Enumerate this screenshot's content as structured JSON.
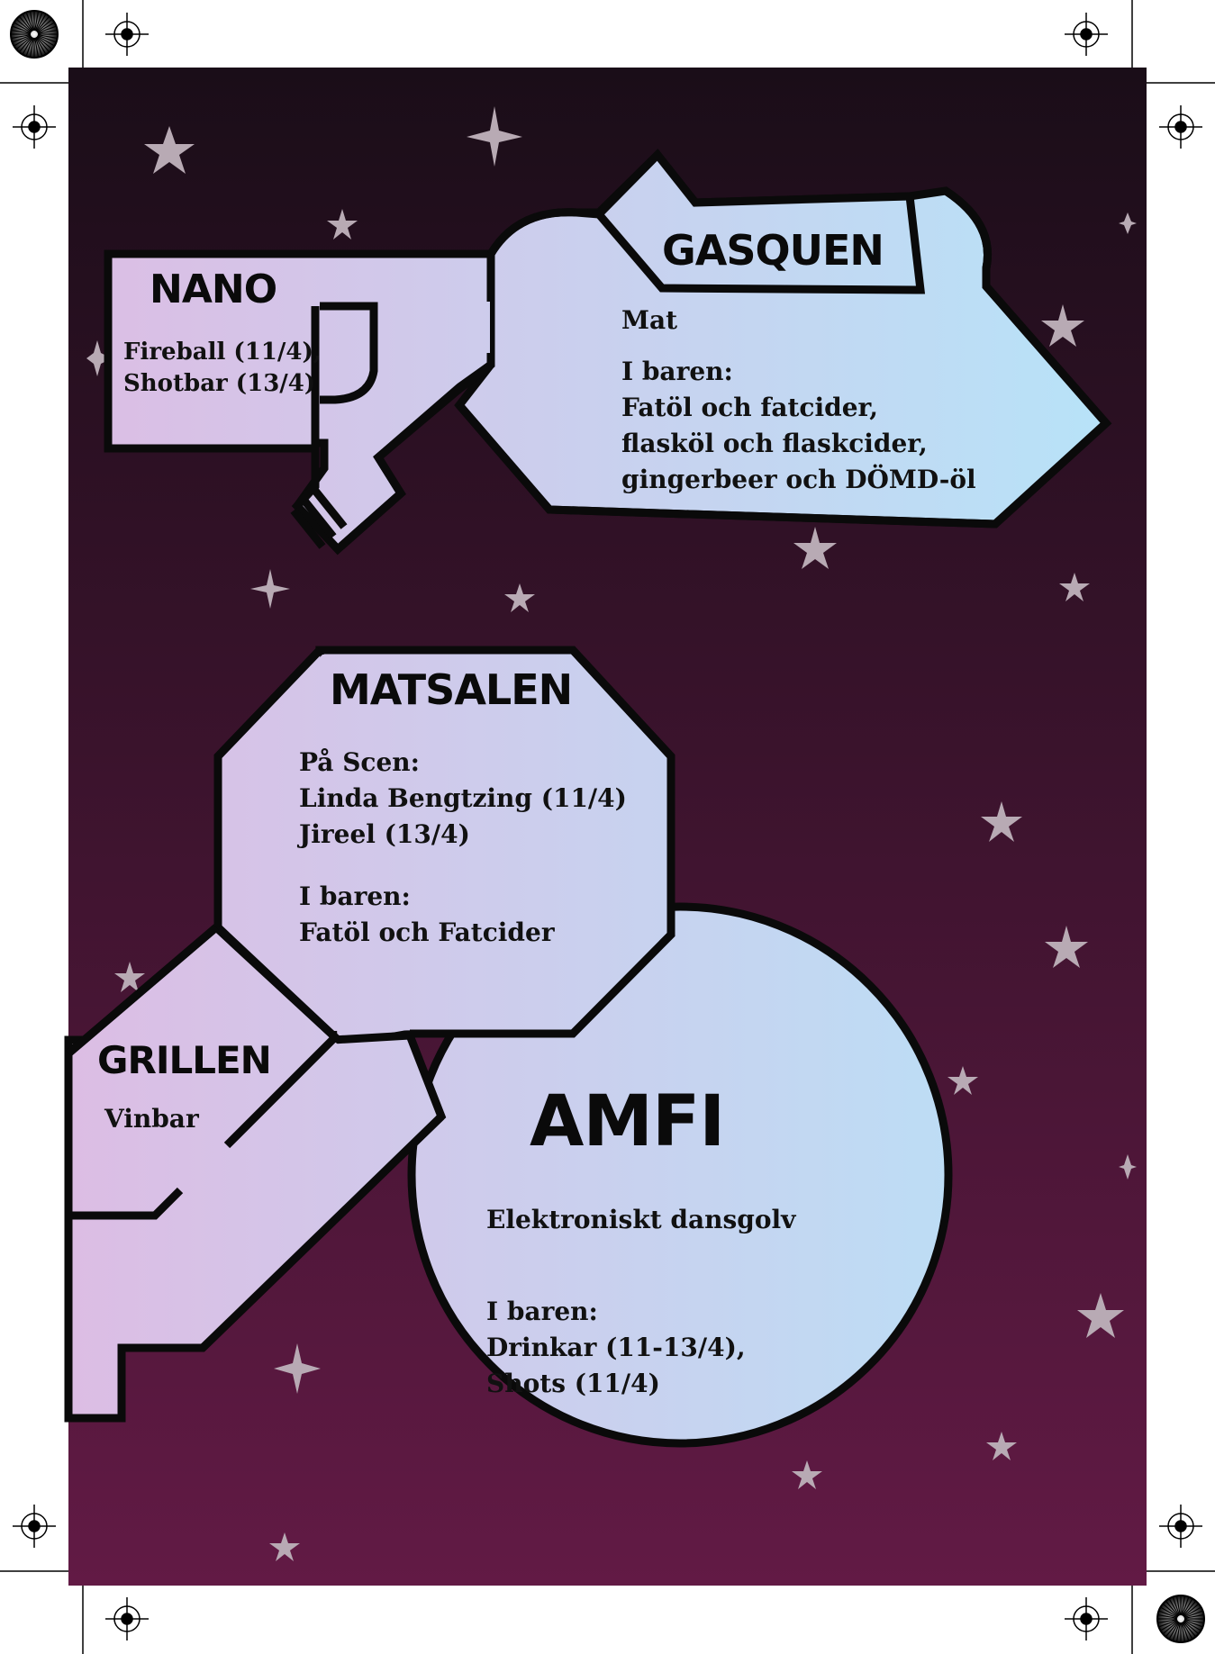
{
  "colors": {
    "bg_top": "#1a0d18",
    "bg_bottom": "#621a45",
    "room_left": "#dcbde4",
    "room_right": "#b7e3f8",
    "outline": "#0a0a0a",
    "star": "#b8aab4"
  },
  "rooms": {
    "nano": {
      "title": "NANO",
      "lines": [
        "Fireball (11/4),",
        "Shotbar (13/4)"
      ]
    },
    "gasquen": {
      "title": "GASQUEN",
      "food": "Mat",
      "bar_heading": "I baren:",
      "bar_lines": [
        "Fatöl och fatcider,",
        "flasköl och flaskcider,",
        "gingerbeer och DÖMD-öl"
      ]
    },
    "matsalen": {
      "title": "MATSALEN",
      "stage_heading": "På Scen:",
      "stage_lines": [
        "Linda Bengtzing (11/4)",
        "Jireel (13/4)"
      ],
      "bar_heading": "I baren:",
      "bar_lines": [
        "Fatöl och Fatcider"
      ]
    },
    "grillen": {
      "title": "GRILLEN",
      "line": "Vinbar"
    },
    "amfi": {
      "title": "AMFI",
      "line": "Elektroniskt dansgolv",
      "bar_heading": "I baren:",
      "bar_lines": [
        "Drinkar (11-13/4),",
        "Shots (11/4)"
      ]
    }
  }
}
